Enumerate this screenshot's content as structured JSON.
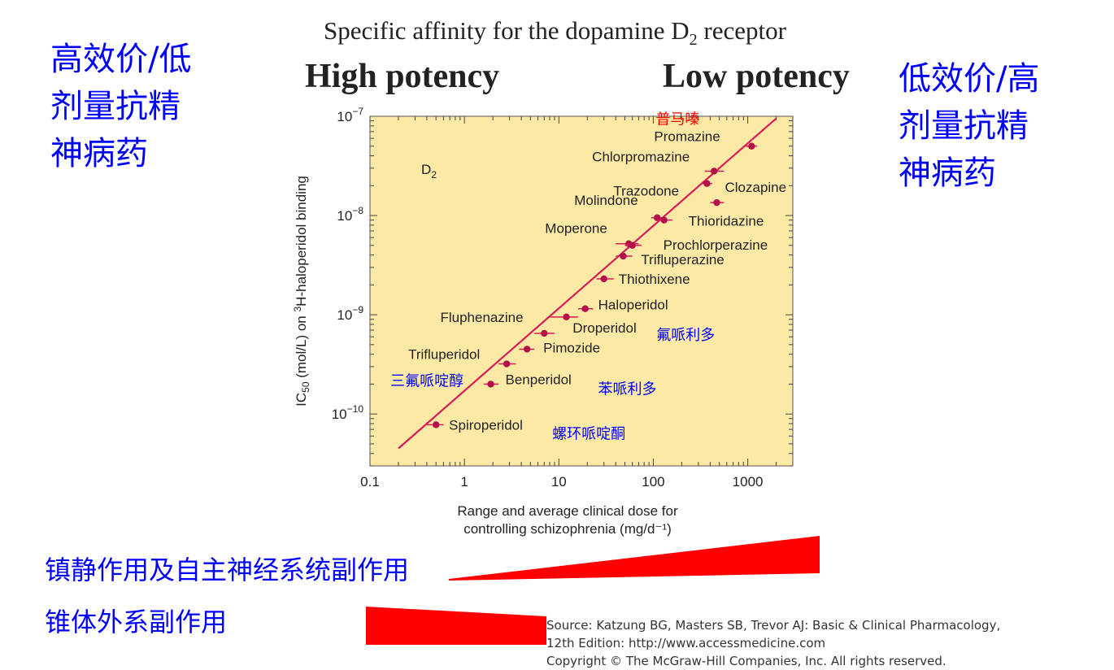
{
  "header": {
    "subtitle_pre": "Specific affinity for the dopamine D",
    "subtitle_sub": "2",
    "subtitle_post": " receptor",
    "high_potency": "High potency",
    "low_potency": "Low potency"
  },
  "side_labels": {
    "left": [
      "高效价/低",
      "剂量抗精",
      "神病药"
    ],
    "right": [
      "低效价/高",
      "剂量抗精",
      "神病药"
    ]
  },
  "bottom": {
    "sedation_label": "镇静作用及自主神经系统副作用",
    "eps_label": "锥体外系副作用",
    "source_lines": [
      "Source: Katzung BG, Masters SB, Trevor AJ: Basic & Clinical Pharmacology,",
      "12th Edition: http://www.accessmedicine.com",
      "Copyright © The McGraw-Hill Companies, Inc. All rights reserved."
    ]
  },
  "colors": {
    "plot_bg": "#fbe9a5",
    "line": "#d81b5a",
    "point": "#b3104a",
    "annotation_blue": "#0000ff",
    "annotation_red": "#ff0000",
    "wedge_red": "#ff0000"
  },
  "chart_data": {
    "type": "scatter",
    "title": "Specific affinity for the dopamine D2 receptor",
    "panel_label": "D2",
    "xlabel_lines": [
      "Range and average clinical dose for",
      "controlling schizophrenia (mg/d⁻¹)"
    ],
    "ylabel": "IC50 (mol/L) on 3H-haloperidol binding",
    "x_scale": "log",
    "y_scale": "log",
    "xlim": [
      0.1,
      3000
    ],
    "ylim": [
      3e-11,
      1e-07
    ],
    "x_ticks": [
      {
        "value": 0.1,
        "label": "0.1"
      },
      {
        "value": 1,
        "label": "1"
      },
      {
        "value": 10,
        "label": "10"
      },
      {
        "value": 100,
        "label": "100"
      },
      {
        "value": 1000,
        "label": "1000"
      }
    ],
    "y_ticks": [
      {
        "value": 1e-07,
        "base": "10",
        "exp": "−7"
      },
      {
        "value": 1e-08,
        "base": "10",
        "exp": "−8"
      },
      {
        "value": 1e-09,
        "base": "10",
        "exp": "−9"
      },
      {
        "value": 1e-10,
        "base": "10",
        "exp": "−10"
      }
    ],
    "fit_line": {
      "x": [
        0.2,
        2000
      ],
      "y": [
        4.5e-11,
        9.5e-08
      ]
    },
    "points": [
      {
        "name": "Promazine",
        "x": 1100,
        "y": 5e-08,
        "x_lo": 950,
        "x_hi": 1250,
        "label_side": "left",
        "cn": "普马嗪"
      },
      {
        "name": "Chlorpromazine",
        "x": 440,
        "y": 2.8e-08,
        "x_lo": 350,
        "x_hi": 560,
        "label_side": "left"
      },
      {
        "name": "Trazodone",
        "x": 370,
        "y": 2.1e-08,
        "x_lo": 320,
        "x_hi": 420,
        "label_side": "left"
      },
      {
        "name": "Clozapine",
        "x": 470,
        "y": 1.35e-08,
        "x_lo": 400,
        "x_hi": 560,
        "label_side": "right"
      },
      {
        "name": "Molindone",
        "x": 110,
        "y": 9.5e-09,
        "x_lo": 95,
        "x_hi": 130,
        "label_side": "left"
      },
      {
        "name": "Thioridazine",
        "x": 130,
        "y": 9e-09,
        "x_lo": 110,
        "x_hi": 160,
        "label_side": "right"
      },
      {
        "name": "Moperone",
        "x": 55,
        "y": 5.2e-09,
        "x_lo": 40,
        "x_hi": 70,
        "label_side": "left"
      },
      {
        "name": "Prochlorperazine",
        "x": 60,
        "y": 5e-09,
        "x_lo": 50,
        "x_hi": 75,
        "label_side": "right"
      },
      {
        "name": "Trifluperazine",
        "x": 48,
        "y": 3.9e-09,
        "x_lo": 40,
        "x_hi": 60,
        "label_side": "right"
      },
      {
        "name": "Thiothixene",
        "x": 30,
        "y": 2.3e-09,
        "x_lo": 25,
        "x_hi": 38,
        "label_side": "right"
      },
      {
        "name": "Haloperidol",
        "x": 19,
        "y": 1.15e-09,
        "x_lo": 16,
        "x_hi": 23,
        "label_side": "right"
      },
      {
        "name": "Fluphenazine",
        "x": 12,
        "y": 9.5e-10,
        "x_lo": 8,
        "x_hi": 16,
        "label_side": "left"
      },
      {
        "name": "Droperidol",
        "x": 7,
        "y": 6.5e-10,
        "x_lo": 5.5,
        "x_hi": 9,
        "label_side": "right",
        "cn": "氟哌利多"
      },
      {
        "name": "Pimozide",
        "x": 4.6,
        "y": 4.5e-10,
        "x_lo": 3.8,
        "x_hi": 5.5,
        "label_side": "right"
      },
      {
        "name": "Trifluperidol",
        "x": 2.8,
        "y": 3.2e-10,
        "x_lo": 2.3,
        "x_hi": 3.5,
        "label_side": "left",
        "cn": "三氟哌啶醇"
      },
      {
        "name": "Benperidol",
        "x": 1.9,
        "y": 2e-10,
        "x_lo": 1.6,
        "x_hi": 2.3,
        "label_side": "right",
        "cn": "苯哌利多"
      },
      {
        "name": "Spiroperidol",
        "x": 0.5,
        "y": 7.8e-11,
        "x_lo": 0.4,
        "x_hi": 0.6,
        "label_side": "right",
        "cn": "螺环哌啶酮"
      }
    ]
  }
}
